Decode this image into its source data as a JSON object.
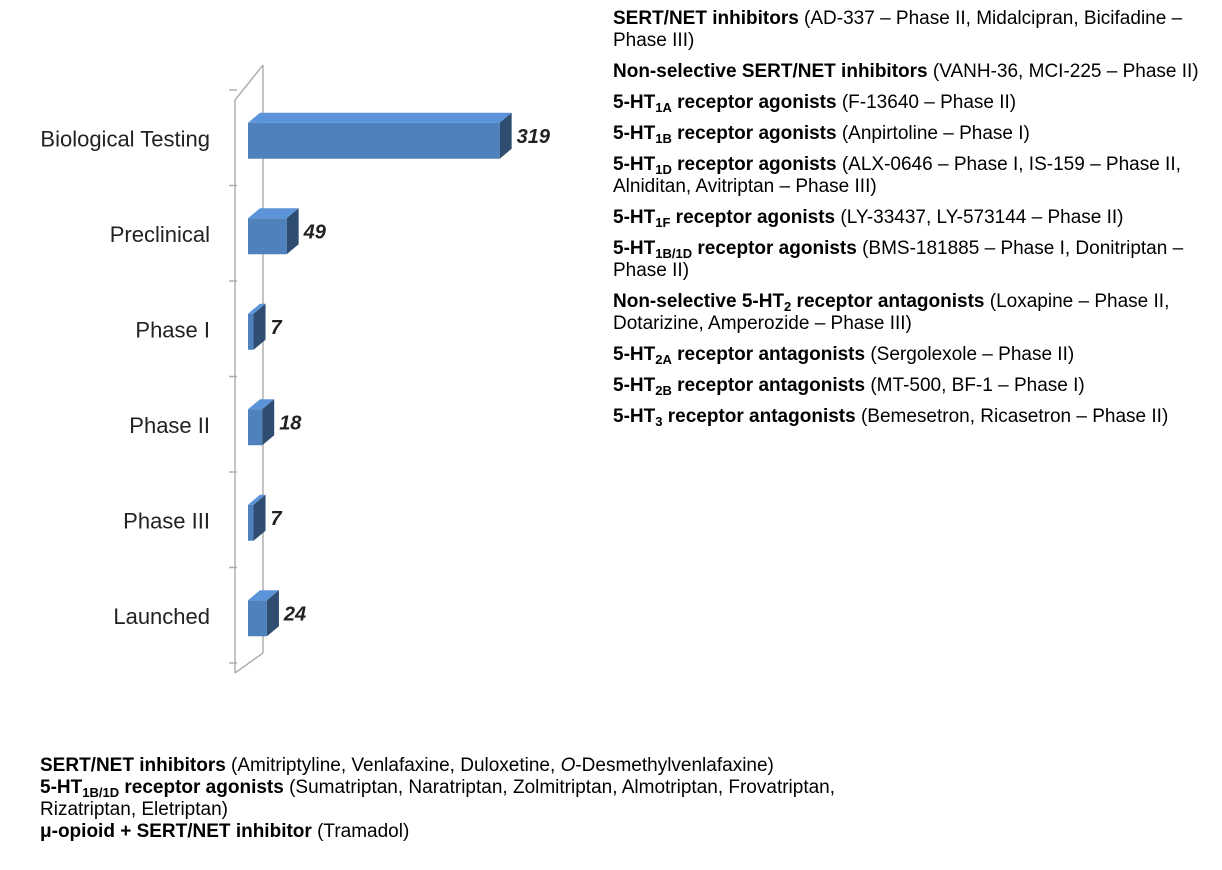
{
  "chart_data": {
    "type": "bar3d-horizontal",
    "categories": [
      "Biological Testing",
      "Preclinical",
      "Phase I",
      "Phase II",
      "Phase III",
      "Launched"
    ],
    "values": [
      319,
      49,
      7,
      18,
      7,
      24
    ],
    "color": "#4f81bd",
    "xlim": [
      0,
      360
    ]
  },
  "right_list": [
    [
      {
        "text": "SERT/NET inhibitors",
        "style": "bold"
      },
      {
        "text": " (AD-337 – Phase II, Midalcipran, Bicifadine – Phase III)",
        "style": "plain"
      }
    ],
    [
      {
        "text": "Non-selective SERT/NET inhibitors",
        "style": "bold"
      },
      {
        "text": " (VANH-36, MCI-225 – Phase II)",
        "style": "plain"
      }
    ],
    [
      {
        "text": "5-HT",
        "style": "bold"
      },
      {
        "text": "1A",
        "style": "sub"
      },
      {
        "text": " receptor agonists",
        "style": "bold"
      },
      {
        "text": " (F-13640 – Phase II)",
        "style": "plain"
      }
    ],
    [
      {
        "text": "5-HT",
        "style": "bold"
      },
      {
        "text": "1B",
        "style": "sub"
      },
      {
        "text": " receptor agonists",
        "style": "bold"
      },
      {
        "text": " (Anpirtoline – Phase I)",
        "style": "plain"
      }
    ],
    [
      {
        "text": "5-HT",
        "style": "bold"
      },
      {
        "text": "1D",
        "style": "sub"
      },
      {
        "text": " receptor agonists",
        "style": "bold"
      },
      {
        "text": " (ALX-0646 – Phase I, IS-159 – Phase II, Alniditan, Avitriptan – Phase III)",
        "style": "plain"
      }
    ],
    [
      {
        "text": "5-HT",
        "style": "bold"
      },
      {
        "text": "1F",
        "style": "sub"
      },
      {
        "text": " receptor agonists",
        "style": "bold"
      },
      {
        "text": " (LY-33437, LY-573144 – Phase II)",
        "style": "plain"
      }
    ],
    [
      {
        "text": "5-HT",
        "style": "bold"
      },
      {
        "text": "1B/1D",
        "style": "sub"
      },
      {
        "text": " receptor agonists",
        "style": "bold"
      },
      {
        "text": " (BMS-181885 – Phase I, Donitriptan – Phase II)",
        "style": "plain"
      }
    ],
    [
      {
        "text": "Non-selective 5-HT",
        "style": "bold"
      },
      {
        "text": "2",
        "style": "sub"
      },
      {
        "text": " receptor antagonists",
        "style": "bold"
      },
      {
        "text": " (Loxapine  – Phase II, Dotarizine, Amperozide – Phase III)",
        "style": "plain"
      }
    ],
    [
      {
        "text": "5-HT",
        "style": "bold"
      },
      {
        "text": "2A",
        "style": "sub"
      },
      {
        "text": " receptor antagonists",
        "style": "bold"
      },
      {
        "text": " (Sergolexole – Phase II)",
        "style": "plain"
      }
    ],
    [
      {
        "text": "5-HT",
        "style": "bold"
      },
      {
        "text": "2B",
        "style": "sub"
      },
      {
        "text": " receptor antagonists",
        "style": "bold"
      },
      {
        "text": " (MT-500, BF-1 – Phase I)",
        "style": "plain"
      }
    ],
    [
      {
        "text": "5-HT",
        "style": "bold"
      },
      {
        "text": "3",
        "style": "sub"
      },
      {
        "text": " receptor antagonists",
        "style": "bold"
      },
      {
        "text": " (Bemesetron, Ricasetron – Phase II)",
        "style": "plain"
      }
    ]
  ],
  "bottom_list": [
    [
      {
        "text": "SERT/NET inhibitors",
        "style": "bold"
      },
      {
        "text": " (Amitriptyline, Venlafaxine, Duloxetine, ",
        "style": "plain"
      },
      {
        "text": "O",
        "style": "italic"
      },
      {
        "text": "-Desmethylvenlafaxine)",
        "style": "plain"
      }
    ],
    [
      {
        "text": "5-HT",
        "style": "bold"
      },
      {
        "text": "1B/1D",
        "style": "sub"
      },
      {
        "text": " receptor agonists",
        "style": "bold"
      },
      {
        "text": " (Sumatriptan, Naratriptan, Zolmitriptan, Almotriptan, Frovatriptan, Rizatriptan, Eletriptan)",
        "style": "plain"
      }
    ],
    [
      {
        "text": "μ-opioid + SERT/NET inhibitor",
        "style": "bold"
      },
      {
        "text": " (Tramadol)",
        "style": "plain"
      }
    ]
  ]
}
